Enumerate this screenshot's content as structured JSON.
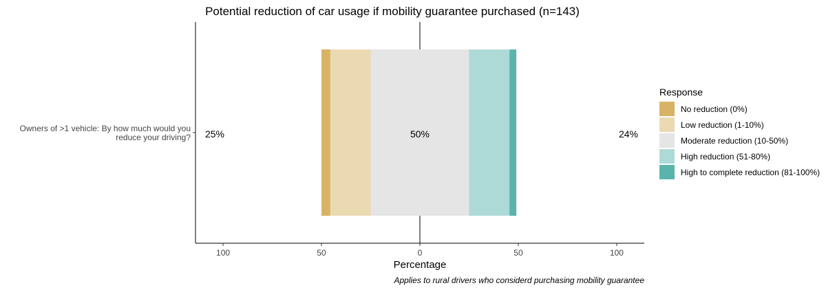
{
  "chart_data": {
    "type": "bar",
    "subtype": "diverging-stacked-bar",
    "title": "Potential reduction of car usage if mobility guarantee purchased (n=143)",
    "xlabel": "Percentage",
    "caption": "Applies to rural drivers who considerd purchasing mobility guarantee",
    "categories": [
      "Owners of >1 vehicle: By how much would you reduce your driving?"
    ],
    "x_ticks": [
      {
        "value": -100,
        "label": "100"
      },
      {
        "value": -50,
        "label": "50"
      },
      {
        "value": 0,
        "label": "0"
      },
      {
        "value": 50,
        "label": "50"
      },
      {
        "value": 100,
        "label": "100"
      }
    ],
    "xlim": [
      -114,
      114
    ],
    "series": [
      {
        "name": "No reduction (0%)",
        "values": [
          4.5
        ],
        "color": "#D8B365"
      },
      {
        "name": "Low reduction (1-10%)",
        "values": [
          20.5
        ],
        "color": "#EBD9B2"
      },
      {
        "name": "Moderate reduction (10-50%)",
        "values": [
          50
        ],
        "color": "#E5E5E5"
      },
      {
        "name": "High reduction (51-80%)",
        "values": [
          20.5
        ],
        "color": "#ADDAD6"
      },
      {
        "name": "High to complete reduction (81-100%)",
        "values": [
          3.5
        ],
        "color": "#5AB4AC"
      }
    ],
    "annotations": {
      "low": "25%",
      "neutral": "50%",
      "high": "24%"
    },
    "legend_title": "Response",
    "legend_position": "right",
    "grid": false
  }
}
